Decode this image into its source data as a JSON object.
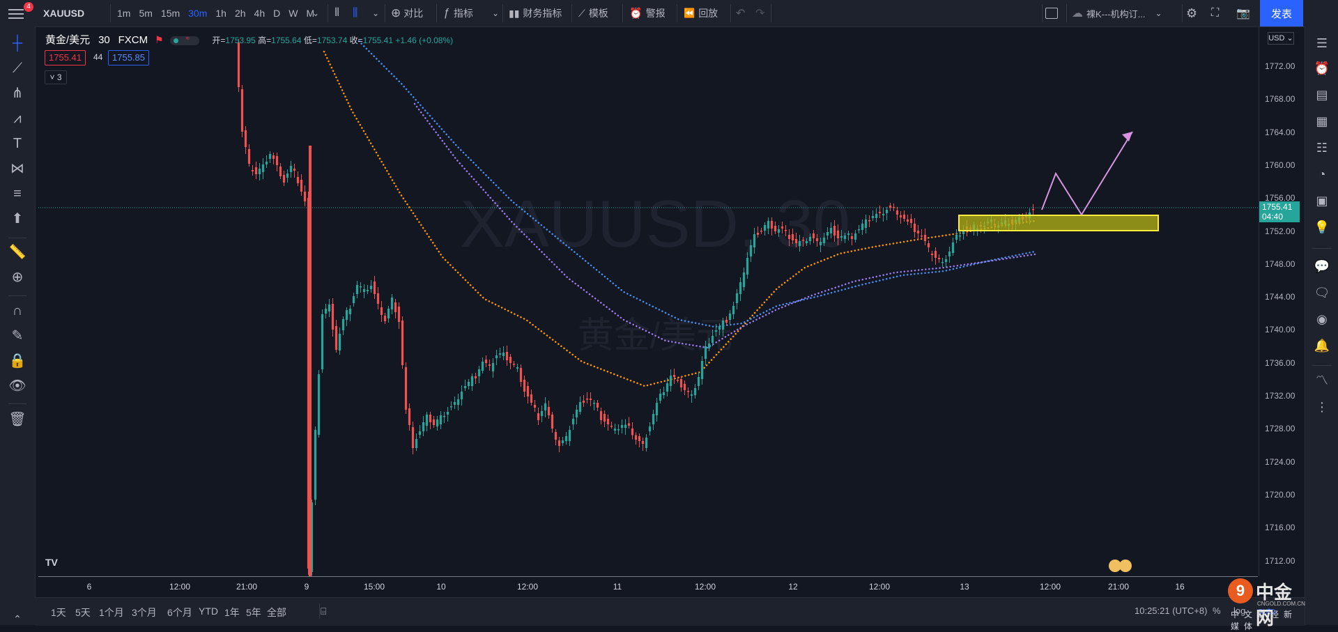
{
  "topbar": {
    "notification_count": "4",
    "symbol": "XAUUSD",
    "intervals": [
      "1m",
      "5m",
      "15m",
      "30m",
      "1h",
      "2h",
      "4h",
      "D",
      "W",
      "M"
    ],
    "active_interval": "30m",
    "compare": "对比",
    "indicators": "指标",
    "financials": "财务指标",
    "templates": "模板",
    "alert": "警报",
    "replay": "回放",
    "layout_name": "裸K---机构订...",
    "publish": "发表"
  },
  "legend": {
    "name": "黄金/美元",
    "interval": "30",
    "source": "FXCM",
    "open_label": "开=",
    "open": "1753.95",
    "high_label": "高=",
    "high": "1755.64",
    "low_label": "低=",
    "low": "1753.74",
    "close_label": "收=",
    "close": "1755.41",
    "change": "+1.46 (+0.08%)",
    "bid": "1755.41",
    "spread": "44",
    "ask": "1755.85",
    "indicator_count": "3"
  },
  "watermark": {
    "symbol": "XAUUSD, 30",
    "name": "黄金/美元"
  },
  "price_axis": {
    "currency": "USD",
    "ticks": [
      "1772.00",
      "1768.00",
      "1764.00",
      "1760.00",
      "1756.00",
      "1752.00",
      "1748.00",
      "1744.00",
      "1740.00",
      "1736.00",
      "1732.00",
      "1728.00",
      "1724.00",
      "1720.00",
      "1716.00",
      "1712.00"
    ],
    "current_price": "1755.41",
    "countdown": "04:40"
  },
  "time_axis": {
    "ticks": [
      "6",
      "12:00",
      "21:00",
      "9",
      "15:00",
      "10",
      "12:00",
      "11",
      "12:00",
      "12",
      "12:00",
      "13",
      "12:00",
      "21:00",
      "16"
    ]
  },
  "bottombar": {
    "ranges": [
      "1天",
      "5天",
      "1个月",
      "3个月",
      "6个月",
      "YTD",
      "1年",
      "5年",
      "全部"
    ],
    "clock": "10:25:21 (UTC+8)"
  },
  "branding": {
    "site_name": "中金网",
    "site_url": "CNGOLD.COM.CN",
    "site_tagline": "中文财经新媒体"
  },
  "colors": {
    "background": "#131722",
    "up": "#26a69a",
    "down": "#ef5350",
    "ma_orange": "#ff9800",
    "ma_blue": "#4a90f0",
    "ma_purple": "#9c7ef0",
    "zone_fill": "#b5b515",
    "zone_border": "#ffeb3b",
    "projection": "#d894e0",
    "accent": "#2962ff"
  }
}
